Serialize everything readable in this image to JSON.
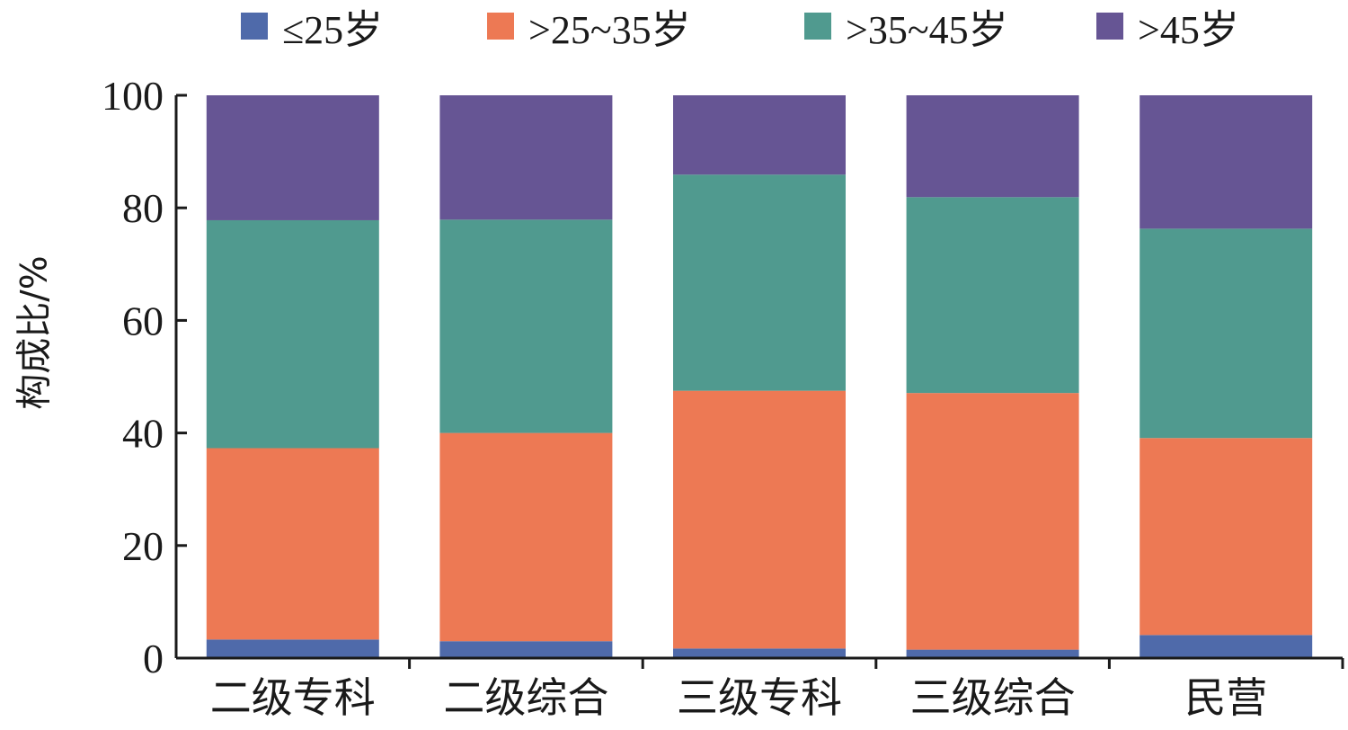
{
  "chart_data": {
    "type": "bar",
    "stacked": true,
    "categories": [
      "二级专科",
      "二级综合",
      "三级专科",
      "三级综合",
      "民营"
    ],
    "series": [
      {
        "name": "≤25岁",
        "color": "#4f6aaa",
        "values": [
          3.3,
          3.0,
          1.7,
          1.5,
          4.1
        ]
      },
      {
        "name": ">25~35岁",
        "color": "#ed7954",
        "values": [
          34.0,
          37.0,
          45.8,
          45.6,
          35.0
        ]
      },
      {
        "name": ">35~45岁",
        "color": "#509a8f",
        "values": [
          40.5,
          37.9,
          38.4,
          34.8,
          37.2
        ]
      },
      {
        "name": ">45岁",
        "color": "#665594",
        "values": [
          22.2,
          22.1,
          14.1,
          18.1,
          23.7
        ]
      }
    ],
    "title": "",
    "xlabel": "",
    "ylabel": "构成比/%",
    "ylim": [
      0,
      100
    ],
    "yticks": [
      "0",
      "20",
      "40",
      "60",
      "80",
      "100"
    ],
    "grid": false,
    "legend_position": "top"
  }
}
